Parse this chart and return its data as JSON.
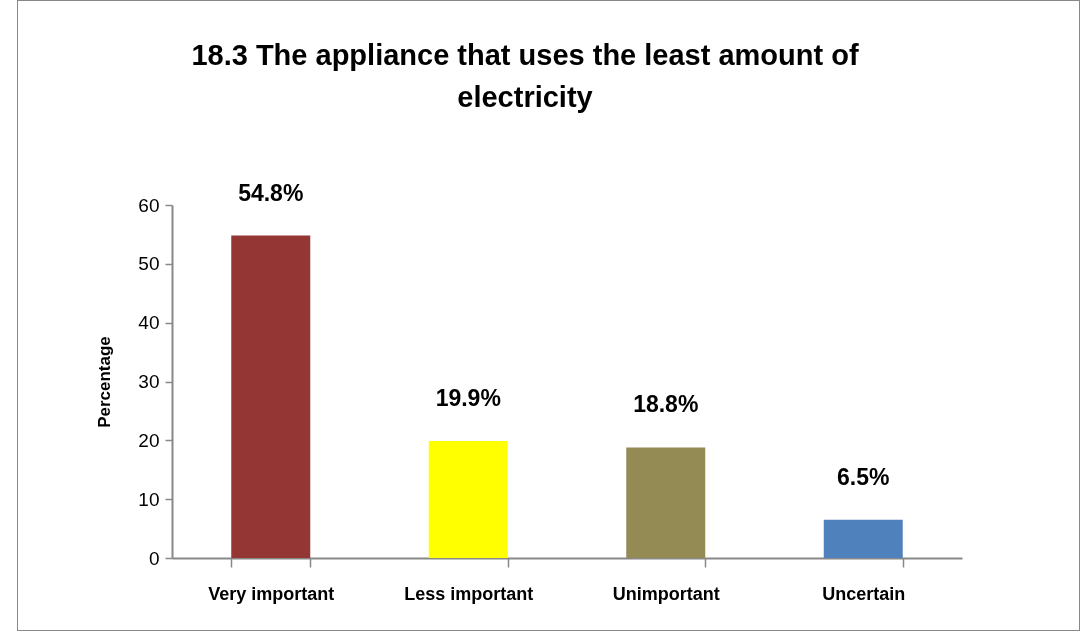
{
  "chart_data": {
    "type": "bar",
    "title": "18.3 The appliance that uses the least amount of electricity",
    "ylabel": "Percentage",
    "categories": [
      "Very important",
      "Less important",
      "Unimportant",
      "Uncertain"
    ],
    "values": [
      54.8,
      19.9,
      18.8,
      6.5
    ],
    "colors": [
      "#943634",
      "#ffff00",
      "#948a54",
      "#4f81bd"
    ],
    "value_labels": [
      "54.8%",
      "19.9%",
      "18.8%",
      "6.5%"
    ],
    "ylim": [
      0,
      60
    ],
    "yticks": [
      0,
      10,
      20,
      30,
      40,
      50,
      60
    ]
  }
}
